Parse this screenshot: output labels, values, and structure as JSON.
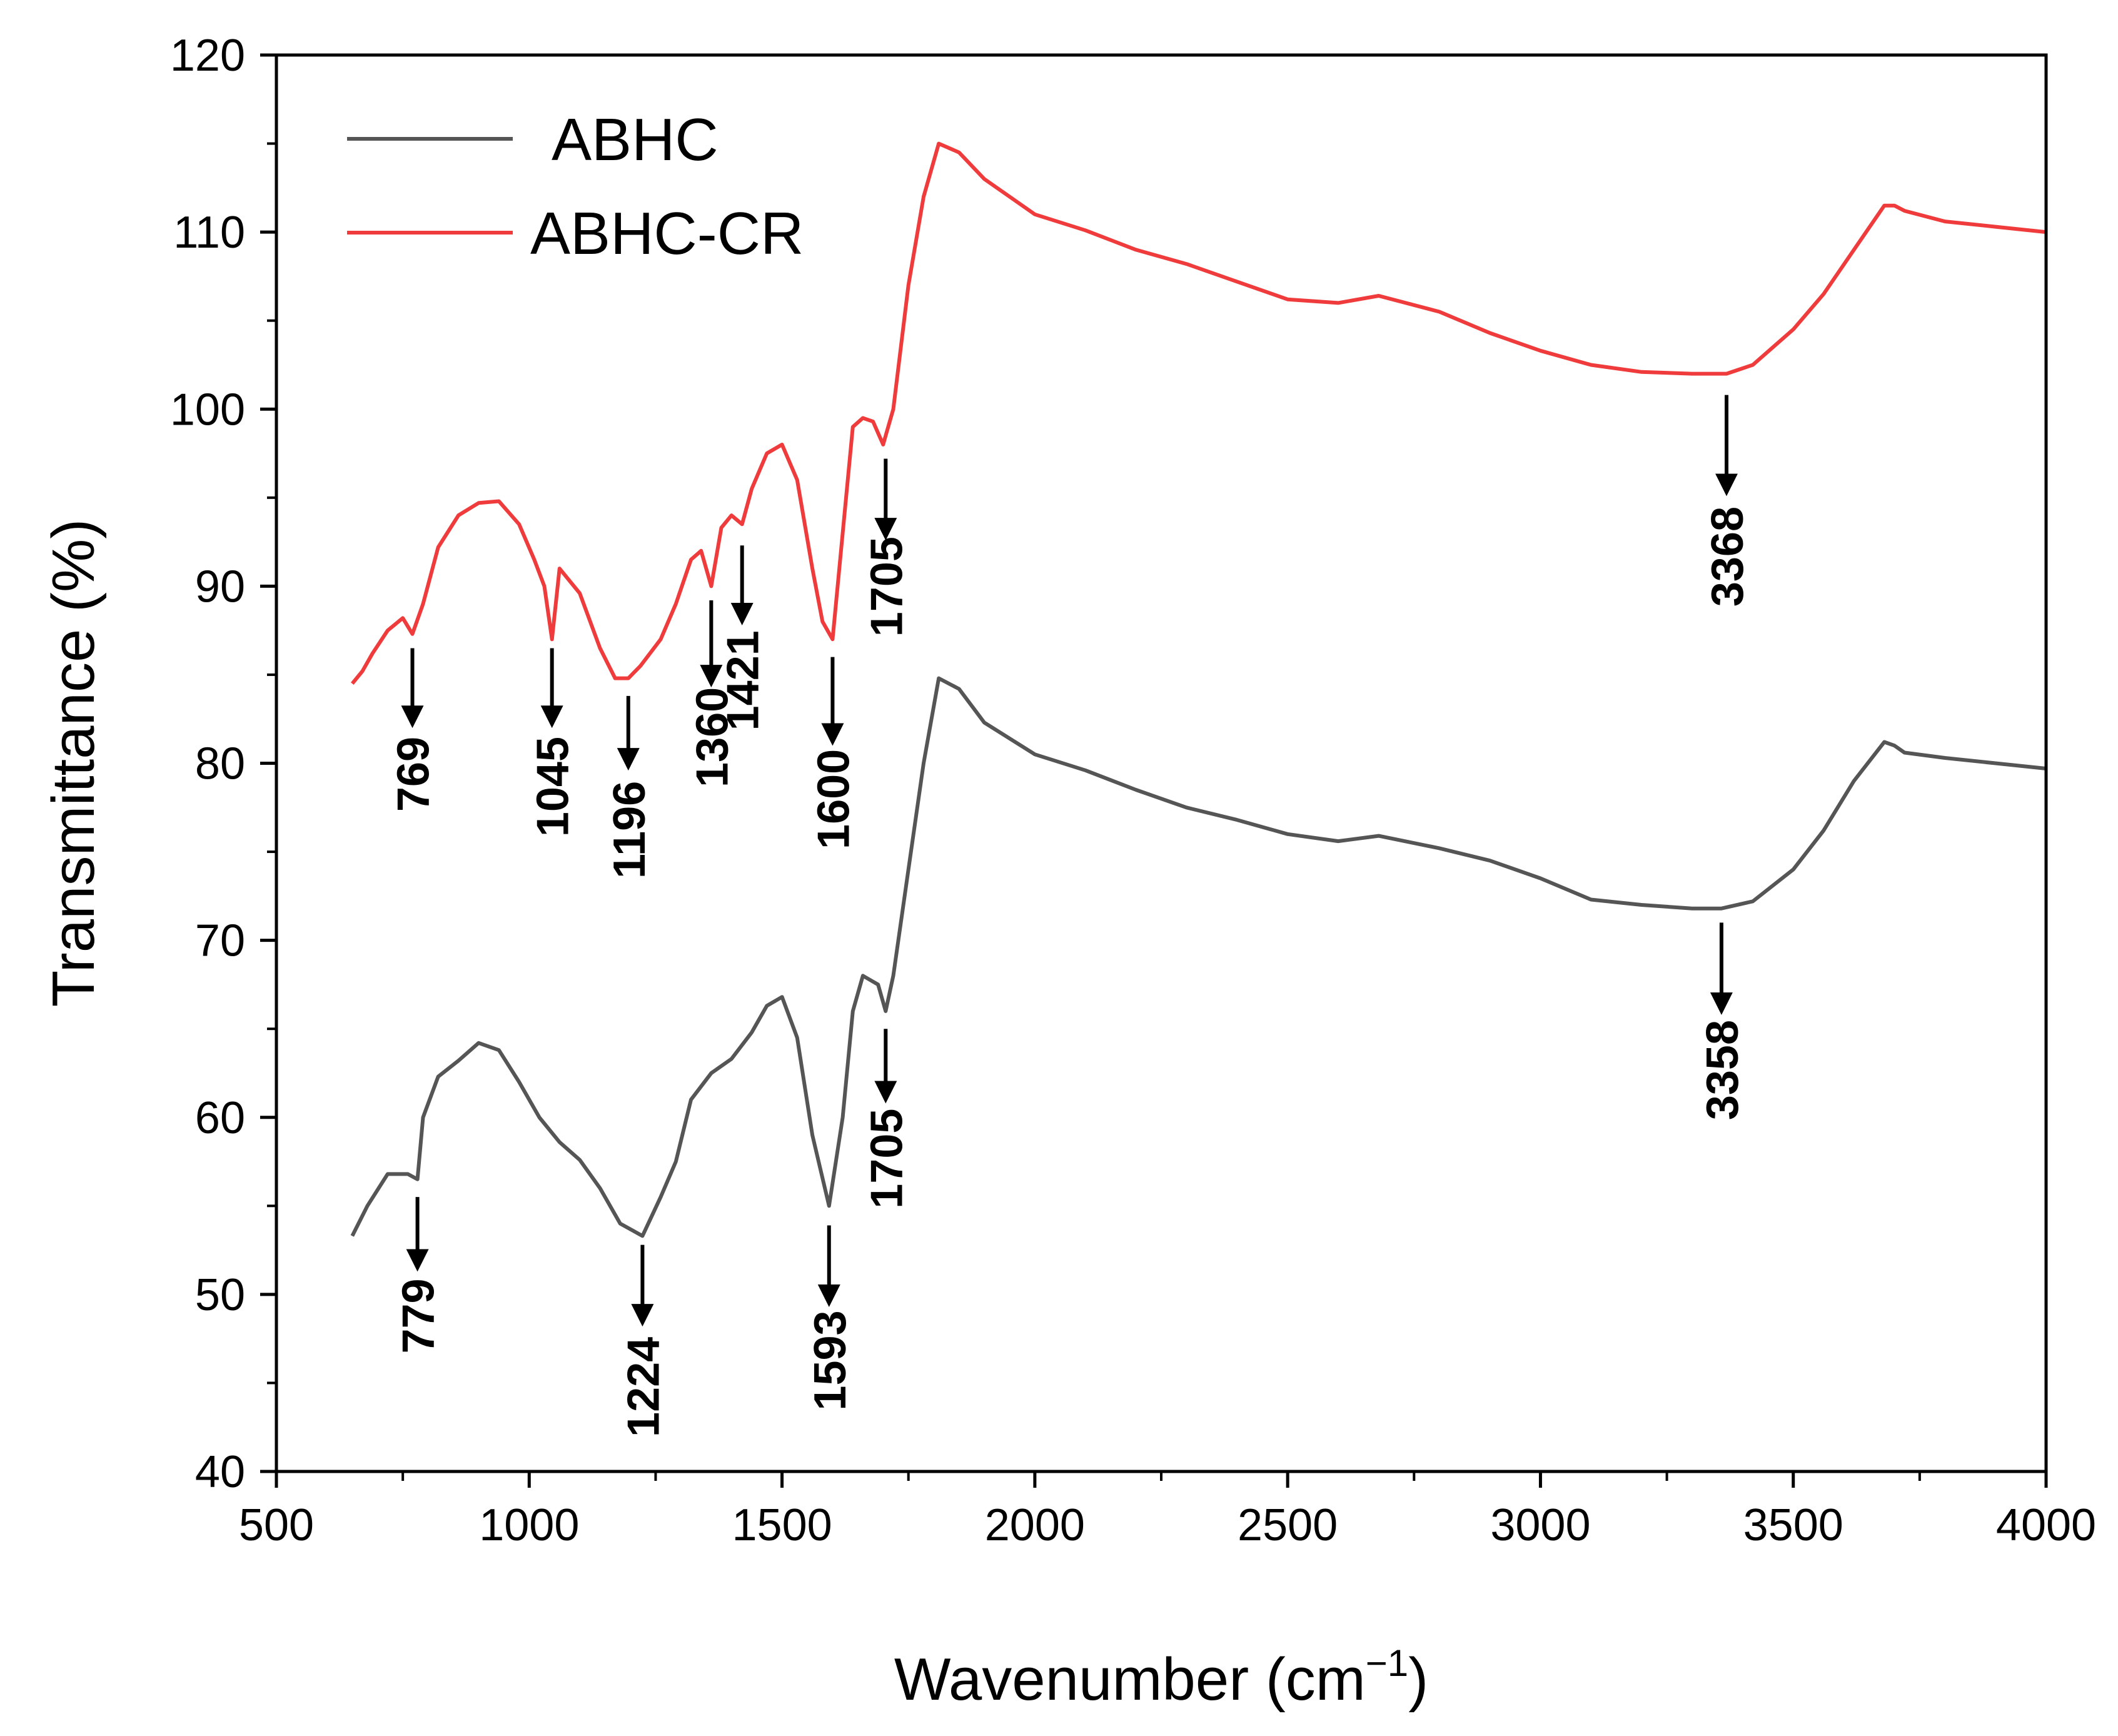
{
  "chart_data": {
    "type": "line",
    "title": "",
    "xlabel": "Wavenumber (cm",
    "xlabel_sup": "−1",
    "xlabel_close": ")",
    "ylabel": "Transmittance (%)",
    "xlim": [
      500,
      4000
    ],
    "ylim": [
      40,
      120
    ],
    "xticks": [
      500,
      1000,
      1500,
      2000,
      2500,
      3000,
      3500,
      4000
    ],
    "yticks": [
      40,
      50,
      60,
      70,
      80,
      90,
      100,
      110,
      120
    ],
    "legend_position": "top-left",
    "series": [
      {
        "name": "ABHC",
        "color": "#555555",
        "x": [
          650,
          680,
          720,
          760,
          779,
          790,
          820,
          860,
          900,
          940,
          980,
          1020,
          1060,
          1100,
          1140,
          1180,
          1224,
          1260,
          1290,
          1320,
          1360,
          1400,
          1440,
          1470,
          1500,
          1530,
          1560,
          1593,
          1620,
          1640,
          1660,
          1690,
          1705,
          1720,
          1750,
          1780,
          1810,
          1850,
          1900,
          2000,
          2100,
          2200,
          2300,
          2400,
          2500,
          2600,
          2680,
          2800,
          2900,
          3000,
          3100,
          3200,
          3300,
          3358,
          3420,
          3500,
          3560,
          3620,
          3680,
          3700,
          3720,
          3800,
          3900,
          4000
        ],
        "y": [
          53.3,
          55,
          56.8,
          56.8,
          56.5,
          60,
          62.3,
          63.2,
          64.2,
          63.8,
          62,
          60,
          58.6,
          57.6,
          56,
          54,
          53.3,
          55.5,
          57.5,
          61,
          62.5,
          63.3,
          64.8,
          66.3,
          66.8,
          64.5,
          59,
          55,
          60,
          66,
          68,
          67.5,
          66,
          68,
          74,
          80,
          84.8,
          84.2,
          82.3,
          80.5,
          79.6,
          78.5,
          77.5,
          76.8,
          76,
          75.6,
          75.9,
          75.2,
          74.5,
          73.5,
          72.3,
          72,
          71.8,
          71.8,
          72.2,
          74,
          76.2,
          79,
          81.2,
          81,
          80.6,
          80.3,
          80,
          79.7
        ]
      },
      {
        "name": "ABHC-CR",
        "color": "#ef3b3b",
        "x": [
          650,
          670,
          690,
          720,
          750,
          769,
          790,
          820,
          860,
          900,
          940,
          980,
          1010,
          1030,
          1045,
          1060,
          1100,
          1140,
          1170,
          1196,
          1220,
          1260,
          1290,
          1320,
          1340,
          1360,
          1380,
          1400,
          1421,
          1440,
          1470,
          1500,
          1530,
          1560,
          1580,
          1600,
          1620,
          1640,
          1660,
          1680,
          1700,
          1705,
          1720,
          1750,
          1780,
          1810,
          1850,
          1900,
          2000,
          2100,
          2200,
          2300,
          2400,
          2500,
          2600,
          2680,
          2800,
          2900,
          3000,
          3100,
          3200,
          3300,
          3368,
          3420,
          3500,
          3560,
          3620,
          3680,
          3700,
          3720,
          3800,
          3900,
          4000
        ],
        "y": [
          84.5,
          85.2,
          86.2,
          87.5,
          88.2,
          87.3,
          89,
          92.2,
          94,
          94.7,
          94.8,
          93.5,
          91.5,
          90,
          87,
          91,
          89.6,
          86.5,
          84.8,
          84.8,
          85.5,
          87,
          89,
          91.5,
          92,
          90,
          93.3,
          94,
          93.5,
          95.5,
          97.5,
          98,
          96,
          91,
          88,
          87,
          93,
          99,
          99.5,
          99.3,
          98,
          98.5,
          100,
          107,
          112,
          115,
          114.5,
          113,
          111,
          110.1,
          109,
          108.2,
          107.2,
          106.2,
          106,
          106.4,
          105.5,
          104.3,
          103.3,
          102.5,
          102.1,
          102,
          102,
          102.5,
          104.5,
          106.5,
          109,
          111.5,
          111.5,
          111.2,
          110.6,
          110.3,
          110
        ]
      }
    ],
    "annotations": [
      {
        "label": "769",
        "x": 769,
        "arrow_top": 86.5,
        "arrow_bottom": 82.2,
        "text_top": 81.5,
        "series": "ABHC-CR"
      },
      {
        "label": "1045",
        "x": 1045,
        "arrow_top": 86.5,
        "arrow_bottom": 82.2,
        "text_top": 81.5,
        "series": "ABHC-CR"
      },
      {
        "label": "1196",
        "x": 1196,
        "arrow_top": 83.8,
        "arrow_bottom": 79.8,
        "text_top": 79,
        "series": "ABHC-CR"
      },
      {
        "label": "1360",
        "x": 1360,
        "arrow_top": 89.2,
        "arrow_bottom": 84.5,
        "text_top": 84.3,
        "series": "ABHC-CR"
      },
      {
        "label": "1421",
        "x": 1421,
        "arrow_top": 92.3,
        "arrow_bottom": 88.0,
        "text_top": 87.5,
        "series": "ABHC-CR"
      },
      {
        "label": "1600",
        "x": 1600,
        "arrow_top": 86.0,
        "arrow_bottom": 81.2,
        "text_top": 80.8,
        "series": "ABHC-CR"
      },
      {
        "label": "1705",
        "x": 1705,
        "arrow_top": 97.2,
        "arrow_bottom": 92.8,
        "text_top": 92.8,
        "series": "ABHC-CR"
      },
      {
        "label": "3368",
        "x": 3368,
        "arrow_top": 100.8,
        "arrow_bottom": 95.3,
        "text_top": 94.5,
        "series": "ABHC-CR"
      },
      {
        "label": "779",
        "x": 779,
        "arrow_top": 55.5,
        "arrow_bottom": 51.5,
        "text_top": 50.9,
        "series": "ABHC"
      },
      {
        "label": "1224",
        "x": 1224,
        "arrow_top": 52.8,
        "arrow_bottom": 48.4,
        "text_top": 47.6,
        "series": "ABHC"
      },
      {
        "label": "1593",
        "x": 1593,
        "arrow_top": 53.9,
        "arrow_bottom": 49.5,
        "text_top": 49.1,
        "series": "ABHC"
      },
      {
        "label": "1705",
        "x": 1705,
        "arrow_top": 65.0,
        "arrow_bottom": 61.0,
        "text_top": 60.5,
        "series": "ABHC"
      },
      {
        "label": "3358",
        "x": 3358,
        "arrow_top": 71.0,
        "arrow_bottom": 66.0,
        "text_top": 65.5,
        "series": "ABHC"
      }
    ]
  }
}
